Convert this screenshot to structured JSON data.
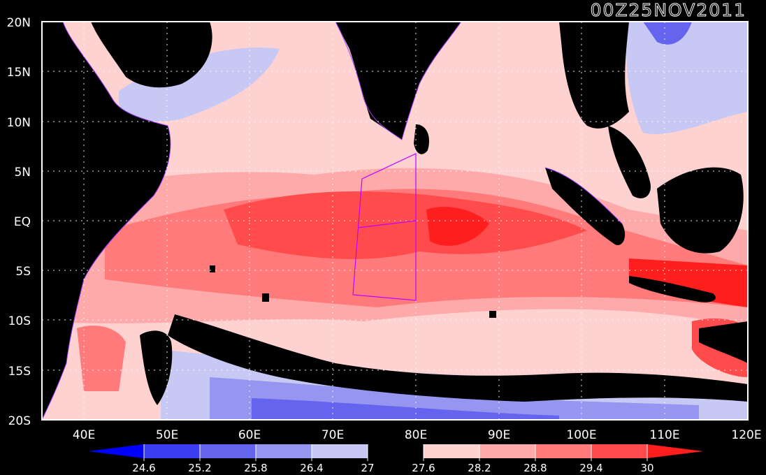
{
  "title": "00Z25NOV2011",
  "axes": {
    "lat_labels": [
      "20N",
      "15N",
      "10N",
      "5N",
      "EQ",
      "5S",
      "10S",
      "15S",
      "20S"
    ],
    "lon_labels": [
      "40E",
      "50E",
      "60E",
      "70E",
      "80E",
      "90E",
      "100E",
      "110E",
      "120E"
    ]
  },
  "colorbar": {
    "values": [
      "24.6",
      "25.2",
      "25.8",
      "26.4",
      "27",
      "27.6",
      "28.2",
      "28.8",
      "29.4",
      "30"
    ],
    "colors": [
      "#0000ff",
      "#3c3cf0",
      "#6464ee",
      "#9696f0",
      "#c8c8f4",
      "#000000",
      "#ffd2d2",
      "#ffaaaa",
      "#ff7b7b",
      "#ff4b4b",
      "#ff1e1e"
    ]
  },
  "colors": {
    "land": "#000000",
    "coast": "#a040ff",
    "box": "#c000ff"
  }
}
